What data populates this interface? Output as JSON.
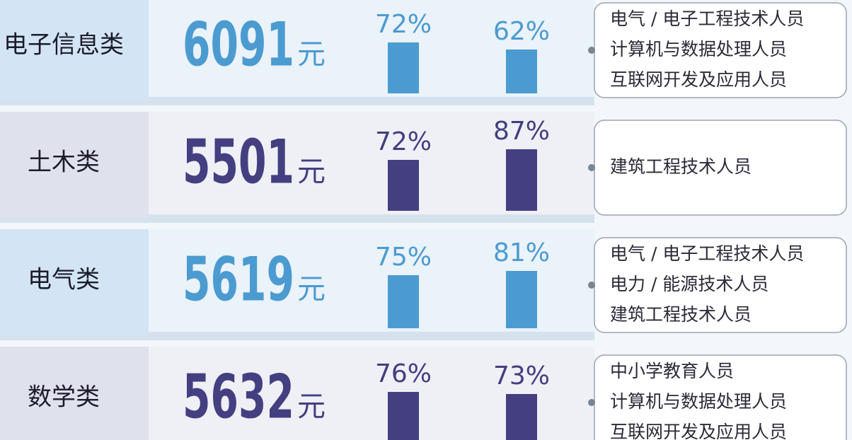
{
  "rows": [
    {
      "major": "电子信息类",
      "salary": 6091,
      "unit": "元",
      "rate1": {
        "value": 72,
        "label": "72%"
      },
      "rate2": {
        "value": 62,
        "label": "62%"
      },
      "jobs": [
        "电气 / 电子工程技术人员",
        "计算机与数据处理人员",
        "互联网开发及应用人员"
      ],
      "color": "#4b9bd0"
    },
    {
      "major": "土木类",
      "salary": 5501,
      "unit": "元",
      "rate1": {
        "value": 72,
        "label": "72%"
      },
      "rate2": {
        "value": 87,
        "label": "87%"
      },
      "jobs": [
        "建筑工程技术人员"
      ],
      "color": "#433f80"
    },
    {
      "major": "电气类",
      "salary": 5619,
      "unit": "元",
      "rate1": {
        "value": 75,
        "label": "75%"
      },
      "rate2": {
        "value": 81,
        "label": "81%"
      },
      "jobs": [
        "电气 / 电子工程技术人员",
        "电力 / 能源技术人员",
        "建筑工程技术人员"
      ],
      "color": "#4b9bd0"
    },
    {
      "major": "数学类",
      "salary": 5632,
      "unit": "元",
      "rate1": {
        "value": 76,
        "label": "76%"
      },
      "rate2": {
        "value": 73,
        "label": "73%"
      },
      "jobs": [
        "中小学教育人员",
        "计算机与数据处理人员",
        "互联网开发及应用人员"
      ],
      "color": "#433f80"
    }
  ]
}
